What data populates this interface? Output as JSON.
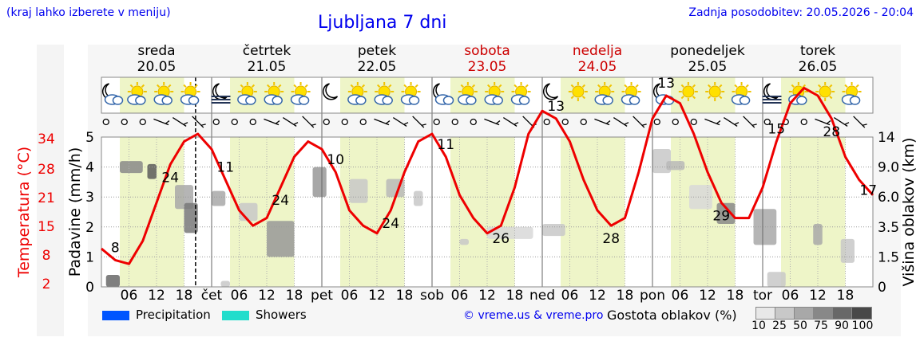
{
  "header": {
    "hint": "(kraj lahko izberete v meniju)",
    "title": "Ljubljana 7 dni",
    "updated": "Zadnja posodobitev: 20.05.2026 - 20:04"
  },
  "colors": {
    "temperature": "#ee0000",
    "precipitation": "#0055ff",
    "showers": "#22ddcc",
    "day_shade": "#eef5c8",
    "weekend_text": "#cc0000"
  },
  "days": [
    {
      "name": "sreda",
      "date": "20.05",
      "abbr": "čet",
      "weekend": false
    },
    {
      "name": "četrtek",
      "date": "21.05",
      "abbr": "pet",
      "weekend": false
    },
    {
      "name": "petek",
      "date": "22.05",
      "abbr": "sob",
      "weekend": false
    },
    {
      "name": "sobota",
      "date": "23.05",
      "abbr": "ned",
      "weekend": true
    },
    {
      "name": "nedelja",
      "date": "24.05",
      "abbr": "pon",
      "weekend": true
    },
    {
      "name": "ponedeljek",
      "date": "25.05",
      "abbr": "tor",
      "weekend": false
    },
    {
      "name": "torek",
      "date": "26.05",
      "abbr": "",
      "weekend": false
    }
  ],
  "icons": [
    [
      "moon-cloud-icon",
      "sun-cloud-icon",
      "sun-cloud-icon",
      "sun-cloud-icon"
    ],
    [
      "fog-moon-icon",
      "sun-cloud-icon",
      "sun-cloud-icon",
      "sun-cloud-icon"
    ],
    [
      "moon-icon",
      "sun-cloud-icon",
      "sun-cloud-icon",
      "sun-cloud-icon"
    ],
    [
      "moon-cloud-icon",
      "sun-cloud-icon",
      "sun-cloud-icon",
      "sun-cloud-icon"
    ],
    [
      "moon-icon",
      "sun-icon",
      "sun-cloud-icon",
      "sun-cloud-icon"
    ],
    [
      "moon-cloud-icon",
      "sun-icon",
      "sun-icon",
      "sun-cloud-icon"
    ],
    [
      "fog-moon-icon",
      "sun-cloud-icon",
      "sun-icon",
      "sun-cloud-icon"
    ]
  ],
  "chart_data": {
    "type": "line",
    "title": "Ljubljana 7 dni",
    "x_ticks_hours": [
      "06",
      "12",
      "18"
    ],
    "y_left_precip": {
      "label": "Padavine (mm/h)",
      "ticks": [
        0,
        1,
        2,
        3,
        4,
        5
      ],
      "range": [
        0,
        5
      ]
    },
    "y_left_temp": {
      "label": "Temperatura (°C)",
      "ticks": [
        2,
        8,
        15,
        21,
        28,
        34
      ]
    },
    "y_right_cloud": {
      "label": "Višina oblakov (km)",
      "ticks": [
        "0",
        "1.5",
        "3.5",
        "6.0",
        "9.0",
        "14"
      ]
    },
    "series": [
      {
        "name": "Temperatura",
        "hours": [
          0,
          3,
          6,
          9,
          12,
          15,
          18,
          21,
          24,
          27,
          30,
          33,
          36,
          39,
          42,
          45,
          48,
          51,
          54,
          57,
          60,
          63,
          66,
          69,
          72,
          75,
          78,
          81,
          84,
          87,
          90,
          93,
          96,
          99,
          102,
          105,
          108,
          111,
          114,
          117,
          120,
          123,
          126,
          129,
          132,
          135,
          138,
          141,
          144,
          147,
          150,
          153,
          156,
          159,
          162,
          165,
          168
        ],
        "values": [
          9,
          7.5,
          7,
          10,
          15,
          20,
          23,
          24,
          22,
          18,
          14,
          12,
          13,
          17,
          21,
          23,
          22,
          19,
          14,
          12,
          11,
          14,
          19,
          23,
          24,
          21,
          16,
          13,
          11,
          12,
          17,
          24,
          27,
          26,
          23,
          18,
          14,
          12,
          13,
          19,
          26,
          29,
          28,
          24,
          19,
          15,
          13,
          13,
          17,
          23,
          28,
          30,
          29,
          26,
          21,
          18,
          16
        ]
      }
    ],
    "temp_labels": [
      {
        "hour": 3,
        "text": "8"
      },
      {
        "hour": 15,
        "text": "24"
      },
      {
        "hour": 27,
        "text": "11"
      },
      {
        "hour": 39,
        "text": "24"
      },
      {
        "hour": 51,
        "text": "10"
      },
      {
        "hour": 63,
        "text": "24"
      },
      {
        "hour": 75,
        "text": "11"
      },
      {
        "hour": 87,
        "text": "26"
      },
      {
        "hour": 99,
        "text": "13"
      },
      {
        "hour": 111,
        "text": "28"
      },
      {
        "hour": 123,
        "text": "13"
      },
      {
        "hour": 135,
        "text": "29"
      },
      {
        "hour": 147,
        "text": "15"
      },
      {
        "hour": 159,
        "text": "28"
      },
      {
        "hour": 167,
        "text": "17"
      }
    ],
    "legend": [
      "Precipitation",
      "Showers"
    ],
    "grid": true
  },
  "footer": {
    "copyright": "© vreme.us & vreme.pro",
    "coverage_title": "Gostota oblakov (%)",
    "coverage_levels": [
      {
        "label": "10",
        "color": "#e8e8e8"
      },
      {
        "label": "25",
        "color": "#c8c8c8"
      },
      {
        "label": "50",
        "color": "#a8a8a8"
      },
      {
        "label": "75",
        "color": "#888888"
      },
      {
        "label": "90",
        "color": "#686868"
      },
      {
        "label": "100",
        "color": "#484848"
      }
    ]
  }
}
